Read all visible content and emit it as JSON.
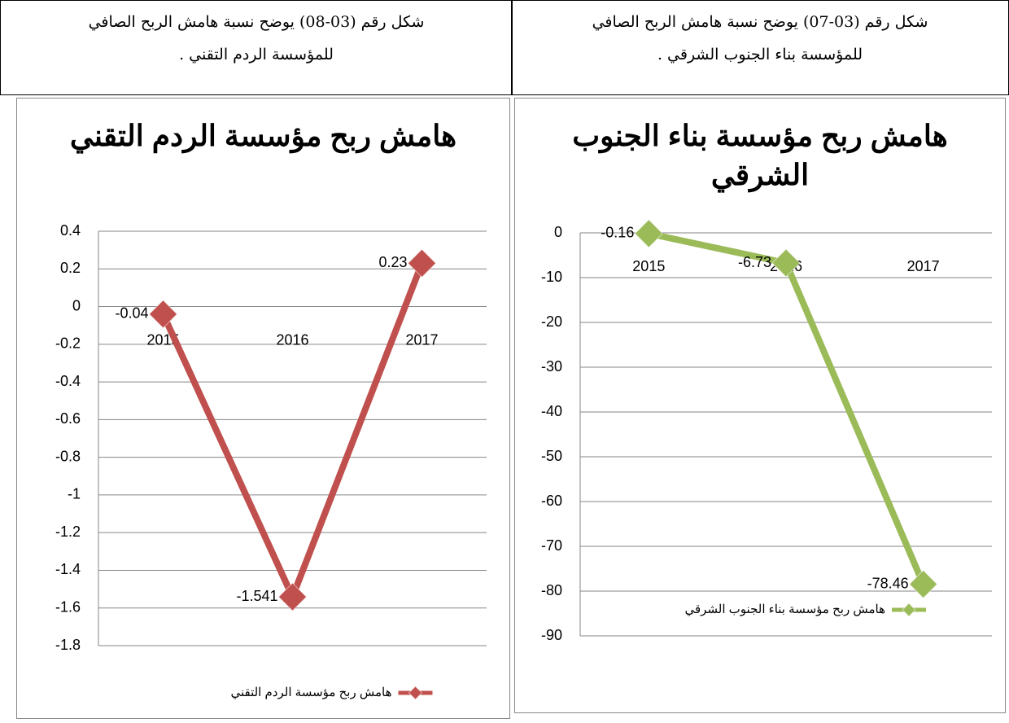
{
  "captions": [
    {
      "lines": [
        "شكل رقم (03-07) يوضح نسبة هامش الربح الصافي",
        "للمؤسسة بناء الجنوب الشرقي ."
      ]
    },
    {
      "lines": [
        "شكل رقم (03-08) يوضح نسبة هامش الربح الصافي",
        "للمؤسسة الردم التقني ."
      ]
    }
  ],
  "chart_data": [
    {
      "type": "line",
      "title": "هامش ربح مؤسسة بناء الجنوب الشرقي",
      "categories": [
        "2015",
        "2016",
        "2017"
      ],
      "series": [
        {
          "name": "هامش ربح مؤسسة بناء الجنوب الشرقي",
          "color": "#9bbb59",
          "values": [
            -0.16,
            -6.73,
            -78.46
          ]
        }
      ],
      "ylim": [
        -90,
        0
      ],
      "yticks": [
        0,
        -10,
        -20,
        -30,
        -40,
        -50,
        -60,
        -70,
        -80,
        -90
      ],
      "grid": true,
      "legend": "bottom"
    },
    {
      "type": "line",
      "title": "هامش ربح مؤسسة الردم التقني",
      "categories": [
        "2015",
        "2016",
        "2017"
      ],
      "series": [
        {
          "name": "هامش ربح مؤسسة الردم التقني",
          "color": "#c0504d",
          "values": [
            -0.04,
            -1.541,
            0.23
          ]
        }
      ],
      "ylim": [
        -1.8,
        0.4
      ],
      "yticks": [
        0.4,
        0.2,
        0,
        -0.2,
        -0.4,
        -0.6,
        -0.8,
        -1,
        -1.2,
        -1.4,
        -1.6,
        -1.8
      ],
      "grid": true,
      "legend": "bottom"
    }
  ]
}
